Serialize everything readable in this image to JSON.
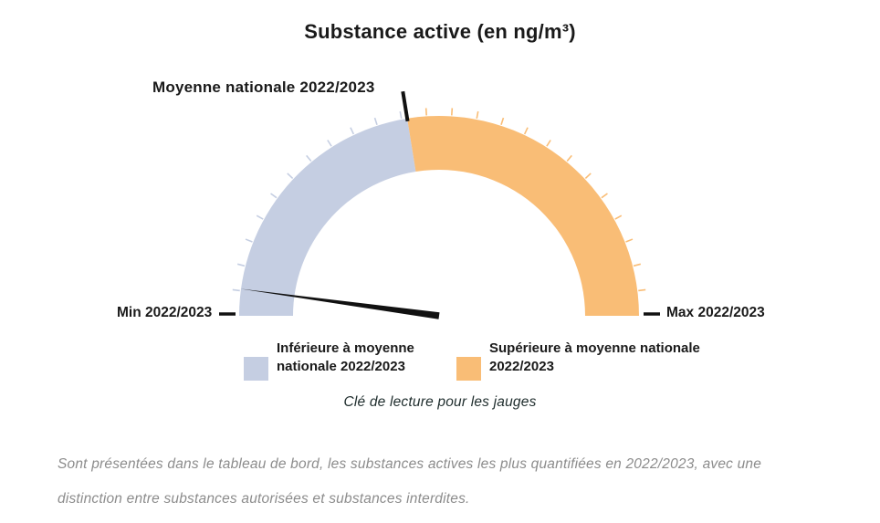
{
  "chart_data": {
    "type": "gauge",
    "title": "Substance active (en ng/m³)",
    "min_label": "Min 2022/2023",
    "max_label": "Max 2022/2023",
    "threshold": {
      "label": "Moyenne nationale 2022/2023",
      "fraction": 0.449,
      "marker_color": "#111111"
    },
    "needle": {
      "fraction": 0.043,
      "color": "#111111"
    },
    "segments": [
      {
        "label": "Inférieure à moyenne nationale 2022/2023",
        "from": 0,
        "to": 0.449,
        "color": "#c5cee2"
      },
      {
        "label": "Supérieure à moyenne nationale 2022/2023",
        "from": 0.449,
        "to": 1,
        "color": "#f9bd76"
      }
    ],
    "ticks": {
      "count": 24,
      "step_degrees": 7.2
    },
    "caption": "Clé de lecture pour les jauges",
    "legend_position": "bottom",
    "axis_range_shown": "min to max (no numeric scale displayed)"
  },
  "footer": {
    "lines": [
      "Sont présentées dans le tableau de bord, les substances actives les plus quantifiées en 2022/2023, avec une",
      "distinction entre substances autorisées et substances interdites."
    ]
  }
}
